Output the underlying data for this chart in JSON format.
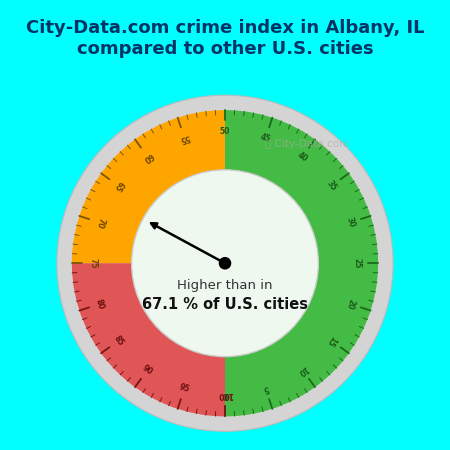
{
  "title": "City-Data.com crime index in Albany, IL\ncompared to other U.S. cities",
  "title_bg_color": "#00FFFF",
  "title_color": "#003366",
  "title_fontsize": 13,
  "green_color": "#44BB44",
  "orange_color": "#FFA500",
  "red_color": "#E05555",
  "needle_value": 67.1,
  "center_text_line1": "Higher than in",
  "center_text_line2": "67.1 % of U.S. cities",
  "watermark": "⧘ City-Data.com",
  "gauge_bg_color": "#dff5e4",
  "inner_bg_color": "#eef8ee",
  "ring_outer_color": "#cccccc",
  "ring_inner_color": "#e0e0e0"
}
